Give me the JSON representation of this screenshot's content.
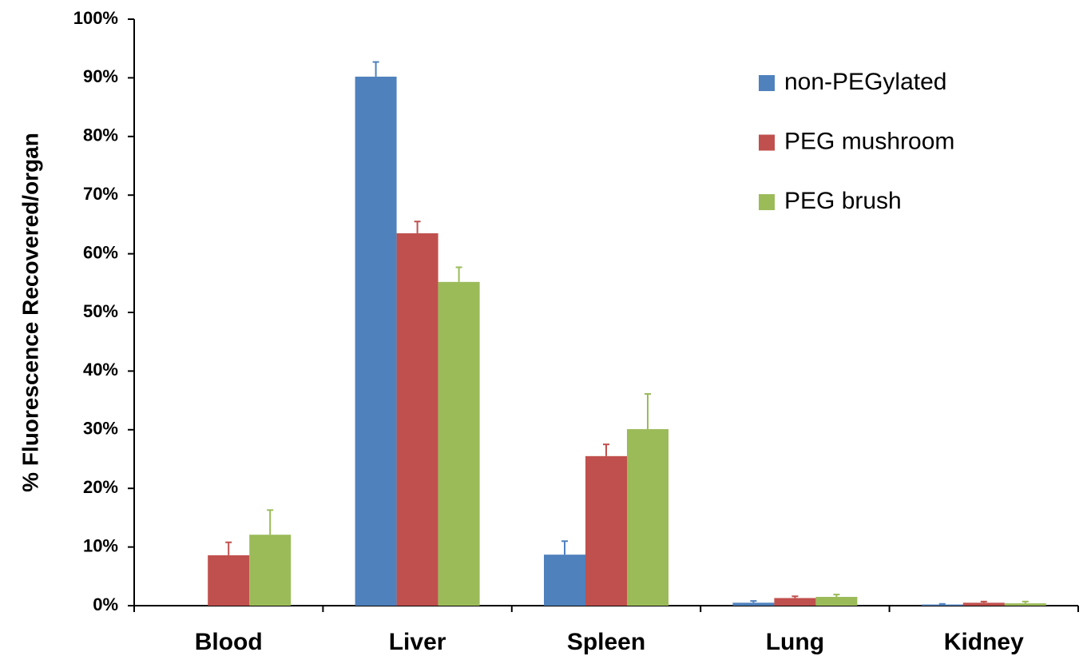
{
  "chart_data": {
    "type": "bar",
    "y_label": "% Fluorescence Recovered/organ",
    "categories": [
      "Blood",
      "Liver",
      "Spleen",
      "Lung",
      "Kidney"
    ],
    "series": [
      {
        "name": "non-PEGylated",
        "color": "#4f81bd",
        "values": [
          null,
          90.2,
          8.7,
          0.5,
          0.2
        ],
        "errors": [
          null,
          2.5,
          2.3,
          0.3,
          0.1
        ]
      },
      {
        "name": "PEG mushroom",
        "color": "#c0504d",
        "values": [
          8.6,
          63.5,
          25.5,
          1.3,
          0.5
        ],
        "errors": [
          2.2,
          2.0,
          2.0,
          0.3,
          0.2
        ]
      },
      {
        "name": "PEG brush",
        "color": "#9bbb59",
        "values": [
          12.1,
          55.2,
          30.1,
          1.5,
          0.4
        ],
        "errors": [
          4.2,
          2.5,
          6.0,
          0.4,
          0.3
        ]
      }
    ],
    "ylim": [
      0,
      100
    ],
    "yticks": [
      {
        "value": 0,
        "label": "0%"
      },
      {
        "value": 10,
        "label": "10%"
      },
      {
        "value": 20,
        "label": "20%"
      },
      {
        "value": 30,
        "label": "30%"
      },
      {
        "value": 40,
        "label": "40%"
      },
      {
        "value": 50,
        "label": "50%"
      },
      {
        "value": 60,
        "label": "60%"
      },
      {
        "value": 70,
        "label": "70%"
      },
      {
        "value": 80,
        "label": "80%"
      },
      {
        "value": 90,
        "label": "90%"
      },
      {
        "value": 100,
        "label": "100%"
      }
    ],
    "legend": "upper right"
  }
}
